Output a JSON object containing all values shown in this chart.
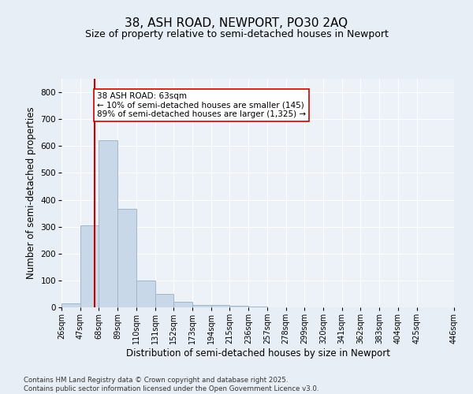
{
  "title_line1": "38, ASH ROAD, NEWPORT, PO30 2AQ",
  "title_line2": "Size of property relative to semi-detached houses in Newport",
  "xlabel": "Distribution of semi-detached houses by size in Newport",
  "ylabel": "Number of semi-detached properties",
  "bar_left_edges": [
    26,
    47,
    68,
    89,
    110,
    131,
    152,
    173,
    194,
    215,
    236,
    257,
    278,
    299,
    320,
    341,
    362,
    383,
    404,
    425
  ],
  "bar_heights": [
    15,
    305,
    620,
    365,
    100,
    50,
    20,
    10,
    10,
    5,
    2,
    1,
    1,
    0,
    0,
    0,
    0,
    0,
    0,
    0
  ],
  "bin_width": 21,
  "bar_color": "#c8d8e8",
  "bar_edge_color": "#a0b8cc",
  "property_line_x": 63,
  "property_line_color": "#cc0000",
  "annotation_text": "38 ASH ROAD: 63sqm\n← 10% of semi-detached houses are smaller (145)\n89% of semi-detached houses are larger (1,325) →",
  "annotation_box_color": "#ffffff",
  "annotation_box_edge_color": "#cc0000",
  "ylim": [
    0,
    850
  ],
  "yticks": [
    0,
    100,
    200,
    300,
    400,
    500,
    600,
    700,
    800
  ],
  "tick_labels": [
    "26sqm",
    "47sqm",
    "68sqm",
    "89sqm",
    "110sqm",
    "131sqm",
    "152sqm",
    "173sqm",
    "194sqm",
    "215sqm",
    "236sqm",
    "257sqm",
    "278sqm",
    "299sqm",
    "320sqm",
    "341sqm",
    "362sqm",
    "383sqm",
    "404sqm",
    "425sqm",
    "446sqm"
  ],
  "bg_color": "#e8eef5",
  "plot_bg_color": "#edf2f8",
  "grid_color": "#ffffff",
  "footer_text": "Contains HM Land Registry data © Crown copyright and database right 2025.\nContains public sector information licensed under the Open Government Licence v3.0.",
  "title_fontsize": 11,
  "subtitle_fontsize": 9,
  "axis_label_fontsize": 8.5,
  "tick_fontsize": 7,
  "annotation_fontsize": 7.5
}
